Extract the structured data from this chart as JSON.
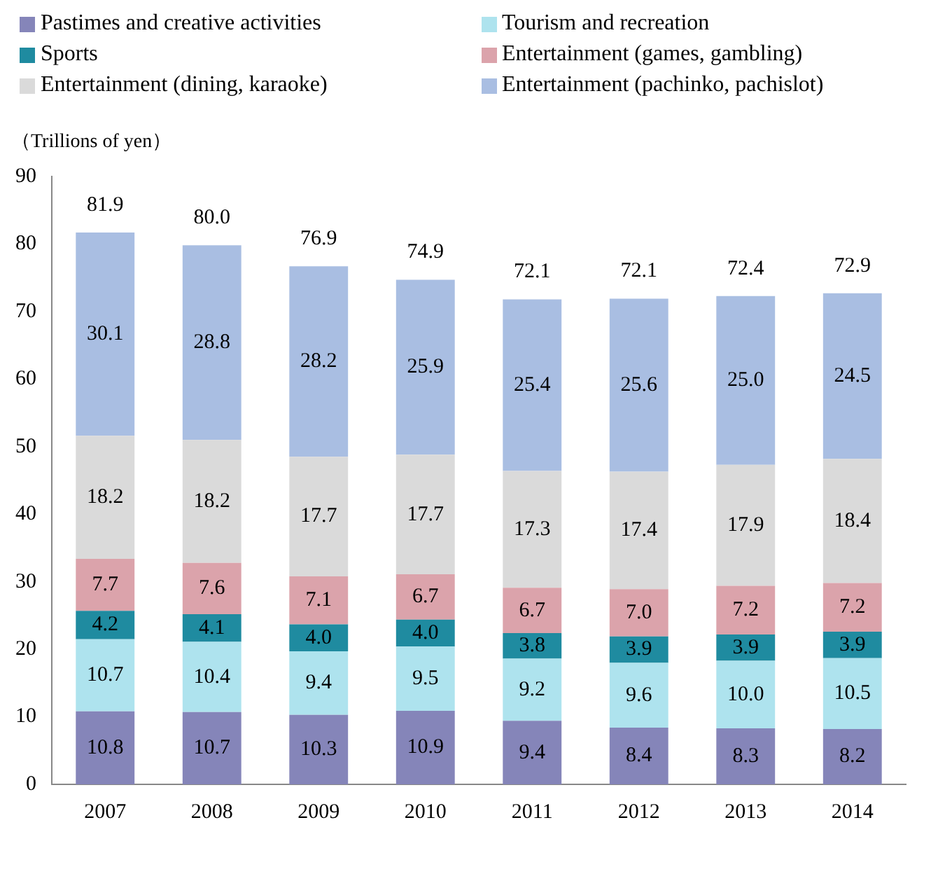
{
  "chart_data": {
    "type": "bar",
    "stacked": true,
    "ylabel": "（Trillions of yen）",
    "categories": [
      "2007",
      "2008",
      "2009",
      "2010",
      "2011",
      "2012",
      "2013",
      "2014"
    ],
    "series": [
      {
        "name": "Pastimes and creative activities",
        "color": "#8585b9",
        "values": [
          10.8,
          10.7,
          10.3,
          10.9,
          9.4,
          8.4,
          8.3,
          8.2
        ],
        "value_labels": [
          "10.8",
          "10.7",
          "10.3",
          "10.9",
          "9.4",
          "8.4",
          "8.3",
          "8.2"
        ]
      },
      {
        "name": "Tourism and recreation",
        "color": "#aee3ee",
        "values": [
          10.7,
          10.4,
          9.4,
          9.5,
          9.2,
          9.6,
          10.0,
          10.5
        ],
        "value_labels": [
          "10.7",
          "10.4",
          "9.4",
          "9.5",
          "9.2",
          "9.6",
          "10.0",
          "10.5"
        ]
      },
      {
        "name": "Sports",
        "color": "#1f8ba0",
        "values": [
          4.2,
          4.1,
          4.0,
          4.0,
          3.8,
          3.9,
          3.9,
          3.9
        ],
        "value_labels": [
          "4.2",
          "4.1",
          "4.0",
          "4.0",
          "3.8",
          "3.9",
          "3.9",
          "3.9"
        ]
      },
      {
        "name": "Entertainment (games, gambling)",
        "color": "#dba3ab",
        "values": [
          7.7,
          7.6,
          7.1,
          6.7,
          6.7,
          7.0,
          7.2,
          7.2
        ],
        "value_labels": [
          "7.7",
          "7.6",
          "7.1",
          "6.7",
          "6.7",
          "7.0",
          "7.2",
          "7.2"
        ]
      },
      {
        "name": "Entertainment (dining, karaoke)",
        "color": "#dadada",
        "values": [
          18.2,
          18.2,
          17.7,
          17.7,
          17.3,
          17.4,
          17.9,
          18.4
        ],
        "value_labels": [
          "18.2",
          "18.2",
          "17.7",
          "17.7",
          "17.3",
          "17.4",
          "17.9",
          "18.4"
        ]
      },
      {
        "name": "Entertainment (pachinko, pachislot)",
        "color": "#a9bee2",
        "values": [
          30.1,
          28.8,
          28.2,
          25.9,
          25.4,
          25.6,
          25.0,
          24.5
        ],
        "value_labels": [
          "30.1",
          "28.8",
          "28.2",
          "25.9",
          "25.4",
          "25.6",
          "25.0",
          "24.5"
        ]
      }
    ],
    "totals": [
      "81.9",
      "80.0",
      "76.9",
      "74.9",
      "72.1",
      "72.1",
      "72.4",
      "72.9"
    ],
    "ylim": [
      0,
      90
    ],
    "yticks": [
      0,
      10,
      20,
      30,
      40,
      50,
      60,
      70,
      80,
      90
    ],
    "grid": false,
    "legend": "top"
  }
}
